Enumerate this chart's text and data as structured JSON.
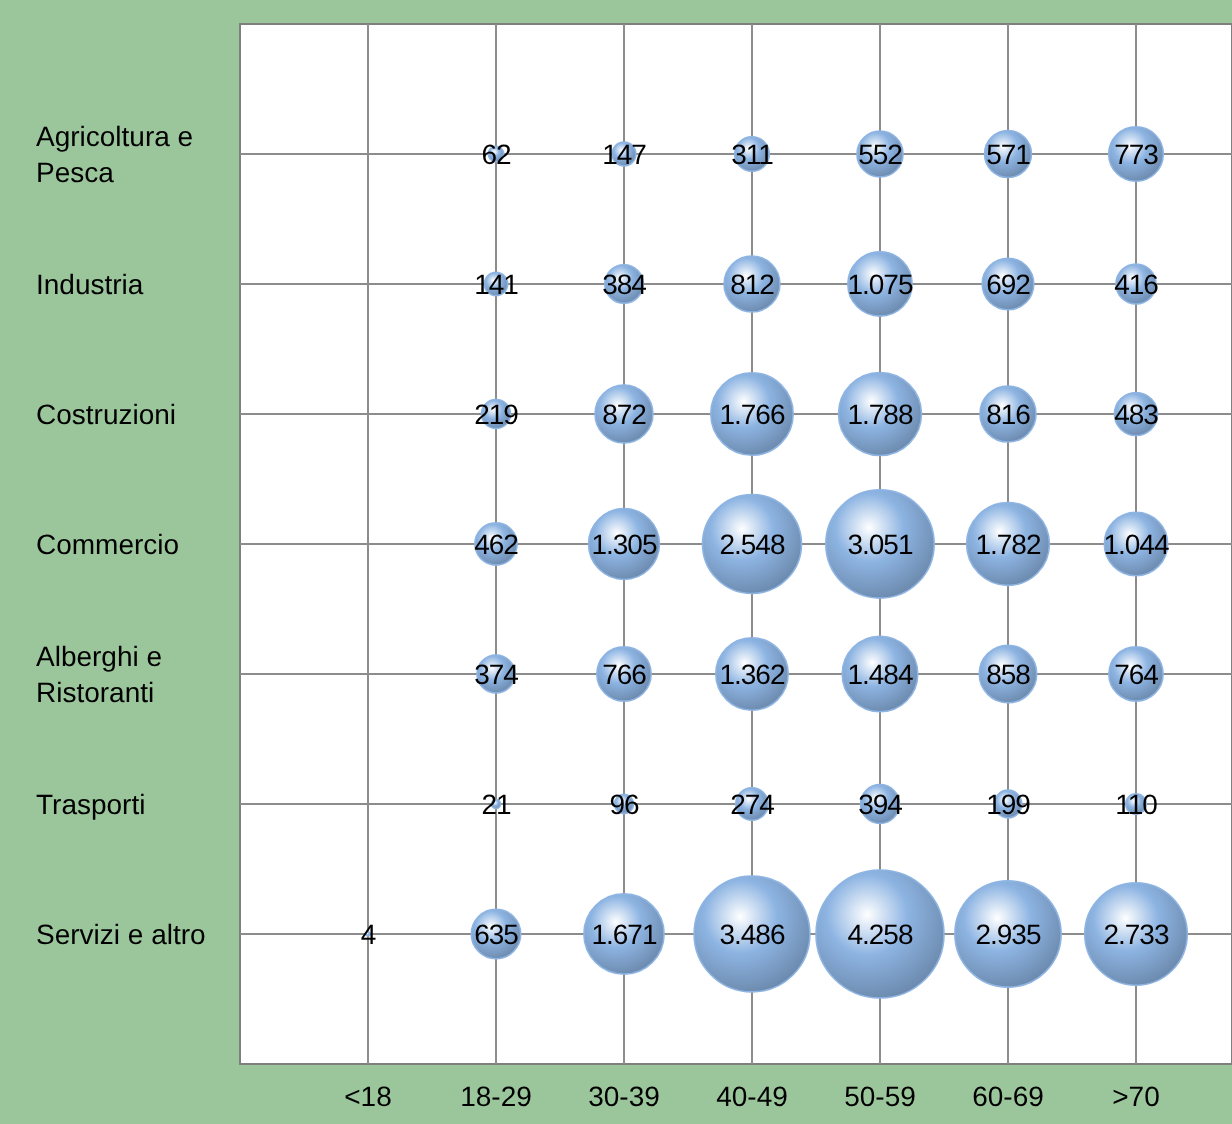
{
  "chart_data": {
    "type": "heatmap",
    "color": "#8db4e2",
    "grid": true,
    "categories": [
      "<18",
      "18-29",
      "30-39",
      "40-49",
      "50-59",
      "60-69",
      ">70"
    ],
    "y_categories": [
      "Agricoltura e Pesca",
      "Industria",
      "Costruzioni",
      "Commercio",
      "Alberghi e Ristoranti",
      "Trasporti",
      "Servizi e altro"
    ],
    "cells": [
      [
        null,
        62,
        147,
        311,
        552,
        571,
        773
      ],
      [
        null,
        141,
        384,
        812,
        1075,
        692,
        416
      ],
      [
        null,
        219,
        872,
        1766,
        1788,
        816,
        483
      ],
      [
        null,
        462,
        1305,
        2548,
        3051,
        1782,
        1044
      ],
      [
        null,
        374,
        766,
        1362,
        1484,
        858,
        764
      ],
      [
        null,
        21,
        96,
        274,
        394,
        199,
        110
      ],
      [
        4,
        635,
        1671,
        3486,
        4258,
        2935,
        2733
      ]
    ],
    "cell_labels": [
      [
        null,
        "62",
        "147",
        "311",
        "552",
        "571",
        "773"
      ],
      [
        null,
        "141",
        "384",
        "812",
        "1.075",
        "692",
        "416"
      ],
      [
        null,
        "219",
        "872",
        "1.766",
        "1.788",
        "816",
        "483"
      ],
      [
        null,
        "462",
        "1.305",
        "2.548",
        "3.051",
        "1.782",
        "1.044"
      ],
      [
        null,
        "374",
        "766",
        "1.362",
        "1.484",
        "858",
        "764"
      ],
      [
        null,
        "21",
        "96",
        "274",
        "394",
        "199",
        "110"
      ],
      [
        "4",
        "635",
        "1.671",
        "3.486",
        "4.258",
        "2.935",
        "2.733"
      ]
    ]
  }
}
